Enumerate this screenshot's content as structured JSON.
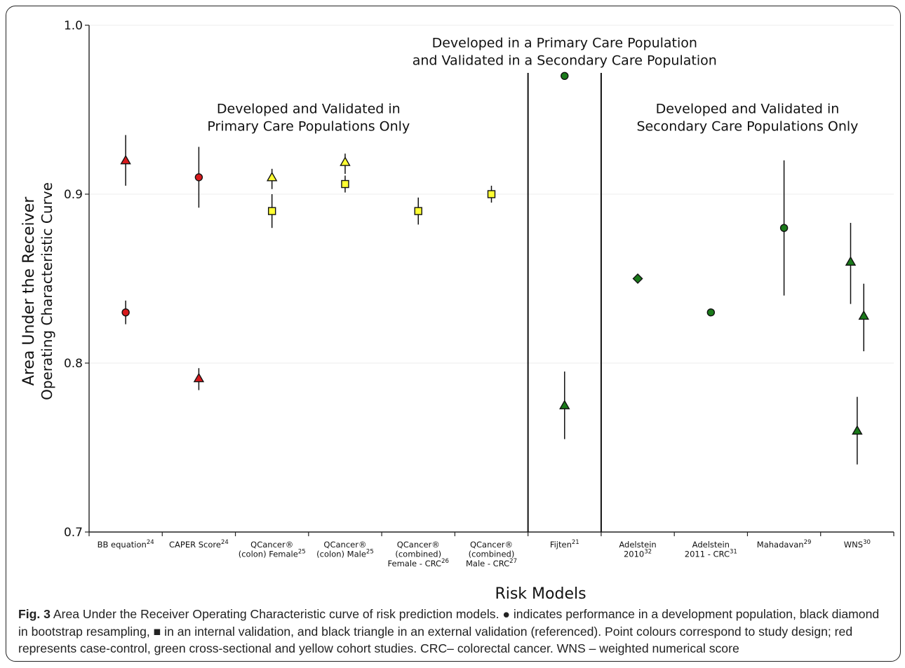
{
  "chart_data": {
    "type": "scatter",
    "ylabel_line1": "Area Under the Receiver",
    "ylabel_line2": "Operating Characteristic Curve",
    "xlabel": "Risk Models",
    "ylim": [
      0.7,
      1.0
    ],
    "yticks": [
      "0.7",
      "0.8",
      "0.9",
      "1.0"
    ],
    "grid": true,
    "colors": {
      "red": "#d7191c",
      "green": "#1a7a1a",
      "yellow": "#ffff33"
    },
    "categories": [
      {
        "lines": [
          "BB equation"
        ],
        "sup": "24"
      },
      {
        "lines": [
          "CAPER Score"
        ],
        "sup": "24"
      },
      {
        "lines": [
          "QCancer®",
          "(colon) Female"
        ],
        "sup": "25"
      },
      {
        "lines": [
          "QCancer®",
          "(colon) Male"
        ],
        "sup": "25"
      },
      {
        "lines": [
          "QCancer®",
          "(combined)",
          "Female - CRC"
        ],
        "sup": "26"
      },
      {
        "lines": [
          "QCancer®",
          "(combined)",
          "Male - CRC"
        ],
        "sup": "27"
      },
      {
        "lines": [
          "Fijten"
        ],
        "sup": "21"
      },
      {
        "lines": [
          "Adelstein",
          "2010"
        ],
        "sup": "32"
      },
      {
        "lines": [
          "Adelstein",
          "2011 - CRC"
        ],
        "sup": "31"
      },
      {
        "lines": [
          "Mahadavan"
        ],
        "sup": "29"
      },
      {
        "lines": [
          "WNS"
        ],
        "sup": "30"
      }
    ],
    "points": [
      {
        "cat": 0,
        "shape": "triangle",
        "color": "red",
        "y": 0.92,
        "lo": 0.905,
        "hi": 0.935
      },
      {
        "cat": 0,
        "shape": "circle",
        "color": "red",
        "y": 0.83,
        "lo": 0.823,
        "hi": 0.837
      },
      {
        "cat": 1,
        "shape": "circle",
        "color": "red",
        "y": 0.91,
        "lo": 0.892,
        "hi": 0.928
      },
      {
        "cat": 1,
        "shape": "triangle",
        "color": "red",
        "y": 0.791,
        "lo": 0.784,
        "hi": 0.797
      },
      {
        "cat": 2,
        "shape": "triangle",
        "color": "yellow",
        "y": 0.91,
        "lo": 0.903,
        "hi": 0.915
      },
      {
        "cat": 2,
        "shape": "square",
        "color": "yellow",
        "y": 0.89,
        "lo": 0.88,
        "hi": 0.9
      },
      {
        "cat": 3,
        "shape": "triangle",
        "color": "yellow",
        "y": 0.919,
        "lo": 0.912,
        "hi": 0.924
      },
      {
        "cat": 3,
        "shape": "square",
        "color": "yellow",
        "y": 0.906,
        "lo": 0.901,
        "hi": 0.911
      },
      {
        "cat": 4,
        "shape": "square",
        "color": "yellow",
        "y": 0.89,
        "lo": 0.882,
        "hi": 0.898
      },
      {
        "cat": 5,
        "shape": "square",
        "color": "yellow",
        "y": 0.9,
        "lo": 0.895,
        "hi": 0.905
      },
      {
        "cat": 6,
        "shape": "circle",
        "color": "green",
        "y": 0.97,
        "lo": null,
        "hi": null
      },
      {
        "cat": 6,
        "shape": "triangle",
        "color": "green",
        "y": 0.775,
        "lo": 0.755,
        "hi": 0.795
      },
      {
        "cat": 7,
        "shape": "diamond",
        "color": "green",
        "y": 0.85,
        "lo": null,
        "hi": null
      },
      {
        "cat": 8,
        "shape": "circle",
        "color": "green",
        "y": 0.83,
        "lo": null,
        "hi": null
      },
      {
        "cat": 9,
        "shape": "circle",
        "color": "green",
        "y": 0.88,
        "lo": 0.84,
        "hi": 0.92
      },
      {
        "cat": 10,
        "shape": "triangle",
        "color": "green",
        "y": 0.86,
        "lo": 0.835,
        "hi": 0.883,
        "offset": -0.3
      },
      {
        "cat": 10,
        "shape": "triangle",
        "color": "green",
        "y": 0.828,
        "lo": 0.807,
        "hi": 0.847,
        "offset": 0.3
      },
      {
        "cat": 10,
        "shape": "triangle",
        "color": "green",
        "y": 0.76,
        "lo": 0.74,
        "hi": 0.78,
        "offset": 0.0
      }
    ],
    "dividers_after": [
      5,
      6
    ],
    "annotations": [
      {
        "lines": [
          "Developed and Validated in",
          "Primary Care Populations Only"
        ],
        "x_cat": 2.5,
        "y": 0.948
      },
      {
        "lines": [
          "Developed in a Primary Care Population",
          "and Validated in a Secondary Care Population"
        ],
        "x_cat": 6.0,
        "y": 0.987
      },
      {
        "lines": [
          "Developed and Validated in",
          "Secondary Care Populations Only"
        ],
        "x_cat": 8.5,
        "y": 0.948
      }
    ]
  },
  "caption": {
    "label": "Fig. 3",
    "text": " Area Under the Receiver Operating Characteristic curve of risk prediction models. ● indicates performance in a development population, black diamond in bootstrap resampling, ■ in an internal validation, and black triangle in an external validation (referenced). Point colours correspond to study design; red represents case-control, green cross-sectional and yellow cohort studies. CRC– colorectal cancer. WNS – weighted numerical score"
  }
}
